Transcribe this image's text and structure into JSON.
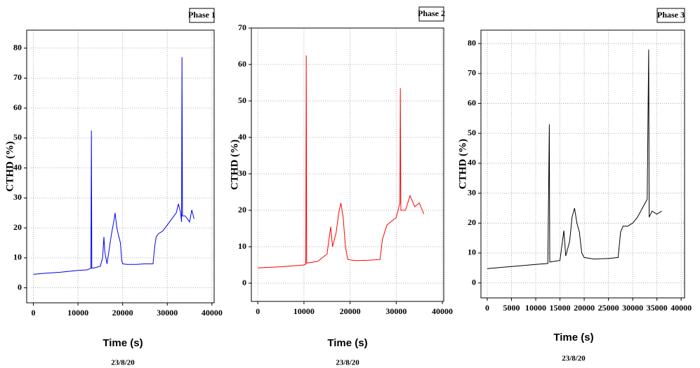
{
  "chart_data": [
    {
      "type": "line",
      "title": "Phase 1",
      "x_label": "Time (s)",
      "y_label": "CTHD (%)",
      "date": "23/8/20",
      "grid": true,
      "xlim": [
        -1500,
        40500
      ],
      "ylim": [
        -5,
        86
      ],
      "xticks": [
        0,
        10000,
        20000,
        30000,
        40000
      ],
      "yticks": [
        0,
        10,
        20,
        30,
        40,
        50,
        60,
        70,
        80
      ],
      "x": [
        0,
        2000,
        4000,
        6000,
        8000,
        10000,
        12000,
        12900,
        13000,
        13100,
        14000,
        15000,
        15500,
        15800,
        16000,
        16500,
        17000,
        17500,
        18000,
        18300,
        18700,
        19000,
        19500,
        19800,
        20000,
        21000,
        23000,
        25000,
        26800,
        27200,
        27500,
        28000,
        29000,
        30000,
        31000,
        32000,
        32500,
        33000,
        33200,
        33300,
        33400,
        34000,
        35000,
        35500,
        36000
      ],
      "series": [
        {
          "color": "#0000ee",
          "values": [
            4.5,
            4.8,
            5,
            5.2,
            5.5,
            5.8,
            6,
            6.5,
            52.5,
            6.5,
            6.8,
            7.2,
            10,
            17,
            12,
            8,
            13,
            18,
            22,
            25,
            20,
            18,
            15,
            9,
            8,
            7.8,
            7.8,
            8,
            8,
            14,
            17,
            18,
            19,
            21,
            23,
            25,
            28,
            25,
            22,
            77,
            24,
            24,
            22,
            26,
            23
          ]
        }
      ]
    },
    {
      "type": "line",
      "title": "Phase 2",
      "x_label": "Time (s)",
      "y_label": "CTHD (%)",
      "date": "23/8/20",
      "grid": true,
      "xlim": [
        -1400,
        40300
      ],
      "ylim": [
        -5,
        70
      ],
      "xticks": [
        0,
        10000,
        20000,
        30000,
        40000
      ],
      "yticks": [
        0,
        10,
        20,
        30,
        40,
        50,
        60,
        70
      ],
      "x": [
        0,
        5000,
        10000,
        10400,
        10500,
        10600,
        13000,
        15000,
        15800,
        16200,
        17000,
        17500,
        18000,
        18500,
        19000,
        19500,
        21000,
        24000,
        26500,
        27000,
        28000,
        29000,
        30000,
        30800,
        30900,
        31000,
        32000,
        33000,
        34000,
        35000,
        36000
      ],
      "series": [
        {
          "color": "#ff0000",
          "values": [
            4.2,
            4.5,
            5,
            5.2,
            62.5,
            5.5,
            6,
            8,
            15.5,
            10,
            14,
            19,
            22,
            18,
            10,
            6.5,
            6.2,
            6.3,
            6.5,
            12,
            16,
            17,
            18,
            22,
            53.5,
            20,
            20,
            24,
            21,
            22,
            19
          ]
        }
      ]
    },
    {
      "type": "line",
      "title": "Phase 3",
      "x_label": "Time (s)",
      "y_label": "CTHD (%)",
      "date": "23/8/20",
      "grid": true,
      "xlim": [
        -1300,
        40700
      ],
      "ylim": [
        -5,
        84.5
      ],
      "xticks": [
        0,
        5000,
        10000,
        15000,
        20000,
        25000,
        30000,
        35000,
        40000
      ],
      "yticks": [
        0,
        10,
        20,
        30,
        40,
        50,
        60,
        70,
        80
      ],
      "x": [
        0,
        5000,
        10000,
        12500,
        12800,
        12900,
        15000,
        15800,
        16200,
        17000,
        17500,
        18000,
        18500,
        19000,
        19500,
        20000,
        22000,
        25000,
        27000,
        27500,
        28000,
        29000,
        30000,
        31000,
        32000,
        33000,
        33300,
        33400,
        34000,
        35000,
        36000
      ],
      "series": [
        {
          "color": "#000000",
          "values": [
            4.8,
            5.5,
            6.2,
            6.5,
            53,
            7,
            7.5,
            17.5,
            9,
            14,
            22,
            25,
            20,
            17,
            10,
            8.5,
            8,
            8.2,
            8.5,
            17,
            19,
            19,
            20,
            22,
            25,
            28,
            78,
            22,
            24,
            23,
            24
          ]
        }
      ]
    }
  ]
}
